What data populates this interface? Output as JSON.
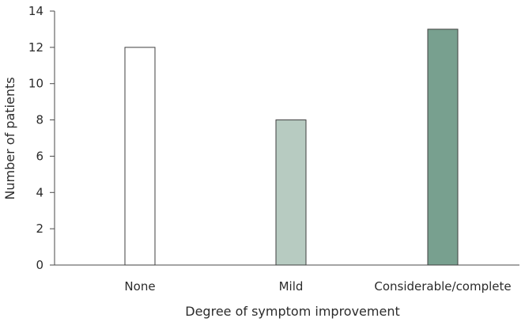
{
  "chart_data": {
    "type": "bar",
    "title": "",
    "xlabel": "Degree of symptom improvement",
    "ylabel": "Number of patients",
    "categories": [
      "None",
      "Mild",
      "Considerable/complete"
    ],
    "values": [
      12,
      8,
      13
    ],
    "bar_colors": [
      "#ffffff",
      "#b7cbc1",
      "#78a08f"
    ],
    "ylim": [
      0,
      14
    ],
    "yticks": [
      "0",
      "2",
      "4",
      "6",
      "8",
      "10",
      "12",
      "14"
    ],
    "grid": false,
    "legend": "none"
  }
}
